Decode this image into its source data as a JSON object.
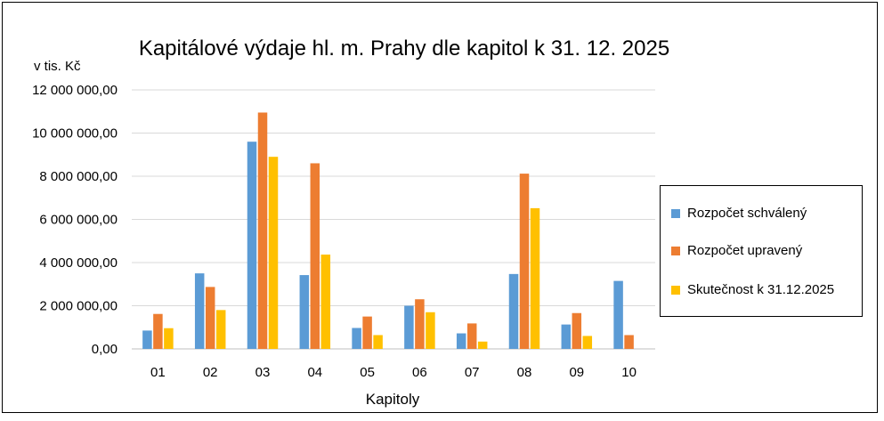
{
  "chart_data": {
    "type": "bar",
    "title": "Kapitálové výdaje hl. m. Prahy dle kapitol k 31. 12. 2025",
    "ylabel": "v tis. Kč",
    "xlabel": "Kapitoly",
    "categories": [
      "01",
      "02",
      "03",
      "04",
      "05",
      "06",
      "07",
      "08",
      "09",
      "10"
    ],
    "ylim": [
      0,
      12000000
    ],
    "yticks": [
      0,
      2000000,
      4000000,
      6000000,
      8000000,
      10000000,
      12000000
    ],
    "ytick_labels": [
      "0,00",
      "2 000 000,00",
      "4 000 000,00",
      "6 000 000,00",
      "8 000 000,00",
      "10 000 000,00",
      "12 000 000,00"
    ],
    "grid": true,
    "legend_position": "right",
    "series": [
      {
        "name": "Rozpočet schválený",
        "color": "#5B9BD5",
        "values": [
          850000,
          3500000,
          9600000,
          3420000,
          970000,
          2000000,
          720000,
          3470000,
          1130000,
          3150000
        ]
      },
      {
        "name": "Rozpočet upravený",
        "color": "#ED7D31",
        "values": [
          1620000,
          2870000,
          10950000,
          8600000,
          1500000,
          2300000,
          1180000,
          8120000,
          1660000,
          640000
        ]
      },
      {
        "name": "Skutečnost k 31.12.2025",
        "color": "#FFC000",
        "values": [
          960000,
          1800000,
          8900000,
          4370000,
          640000,
          1700000,
          340000,
          6520000,
          600000,
          0
        ]
      }
    ]
  }
}
